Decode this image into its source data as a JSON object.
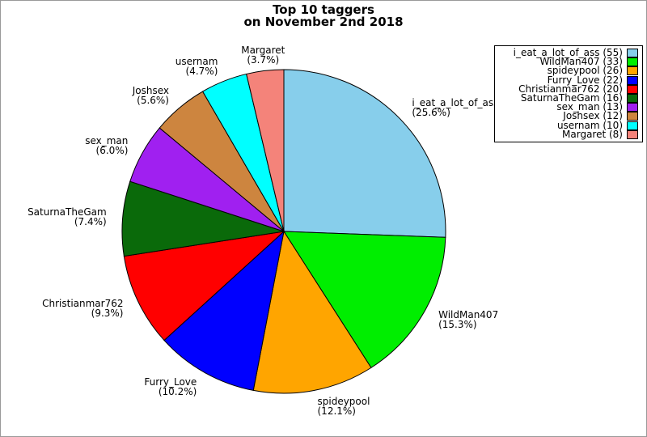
{
  "chart_data": {
    "type": "pie",
    "title_line1": "Top 10 taggers",
    "title_line2": "on November 2nd 2018",
    "start_angle_deg": 90,
    "direction": "clockwise",
    "total": 215,
    "grid": false,
    "legend_position": "upper-right",
    "legend_format": "name (value)",
    "series": [
      {
        "name": "i_eat_a_lot_of_ass",
        "value": 55,
        "pct": "25.6%",
        "color": "#87CEEB"
      },
      {
        "name": "WildMan407",
        "value": 33,
        "pct": "15.3%",
        "color": "#00EE00"
      },
      {
        "name": "spideypool",
        "value": 26,
        "pct": "12.1%",
        "color": "#FFA500"
      },
      {
        "name": "Furry_Love",
        "value": 22,
        "pct": "10.2%",
        "color": "#0000FF"
      },
      {
        "name": "Christianmar762",
        "value": 20,
        "pct": "9.3%",
        "color": "#FF0000"
      },
      {
        "name": "SaturnaTheGam",
        "value": 16,
        "pct": "7.4%",
        "color": "#0A6A0A"
      },
      {
        "name": "sex_man",
        "value": 13,
        "pct": "6.0%",
        "color": "#A020F0"
      },
      {
        "name": "Joshsex",
        "value": 12,
        "pct": "5.6%",
        "color": "#CD853F"
      },
      {
        "name": "usernam",
        "value": 10,
        "pct": "4.7%",
        "color": "#00FFFF"
      },
      {
        "name": "Margaret",
        "value": 8,
        "pct": "3.7%",
        "color": "#F4837A"
      }
    ]
  }
}
